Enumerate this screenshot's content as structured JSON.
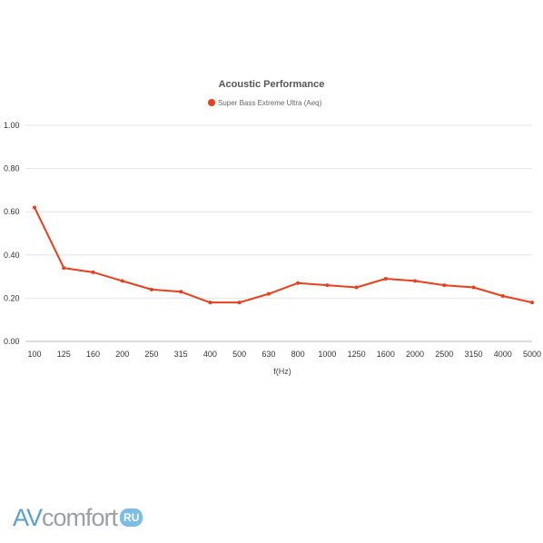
{
  "chart_data": {
    "type": "line",
    "title": "Acoustic Performance",
    "xlabel": "f(Hz)",
    "ylabel": "",
    "categories": [
      "100",
      "125",
      "160",
      "200",
      "250",
      "315",
      "400",
      "500",
      "630",
      "800",
      "1000",
      "1250",
      "1600",
      "2000",
      "2500",
      "3150",
      "4000",
      "5000"
    ],
    "series": [
      {
        "name": "Super Bass Extreme Ultra (Aeq)",
        "values": [
          0.62,
          0.34,
          0.32,
          0.28,
          0.24,
          0.23,
          0.18,
          0.18,
          0.22,
          0.27,
          0.26,
          0.25,
          0.29,
          0.28,
          0.26,
          0.25,
          0.21,
          0.18
        ],
        "color": "#e8401c"
      }
    ],
    "ylim": [
      0,
      1.0
    ],
    "yticks": [
      "0.00",
      "0.20",
      "0.40",
      "0.60",
      "0.80",
      "1.00"
    ],
    "grid": true,
    "legend_position": "top-center"
  },
  "watermark": {
    "brand_av": "AV",
    "brand_comfort": "comfort",
    "brand_ru": "RU",
    "accent_color": "#5aa0c8"
  }
}
